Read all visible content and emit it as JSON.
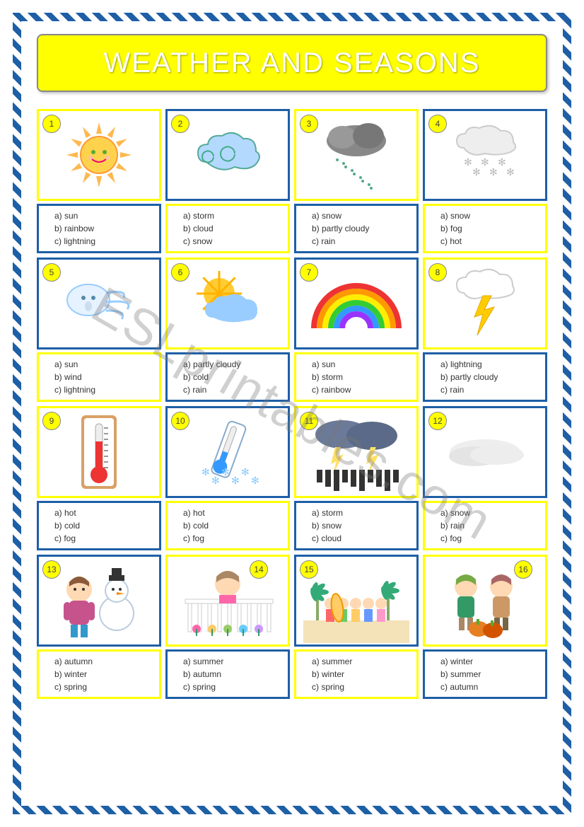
{
  "title": "WEATHER AND SEASONS",
  "watermark": "ESLprintables.com",
  "colors": {
    "title_bg": "#ffff00",
    "title_text": "#ffffff",
    "border_blue": "#1e5fa6",
    "border_yellow": "#ffff00",
    "badge_bg": "#ffff00"
  },
  "option_prefixes": [
    "a)",
    "b)",
    "c)"
  ],
  "cells": [
    {
      "n": 1,
      "img_border": "yellow",
      "opt_border": "blue",
      "icon": "sun",
      "opts": [
        "sun",
        "rainbow",
        "lightning"
      ]
    },
    {
      "n": 2,
      "img_border": "blue",
      "opt_border": "yellow",
      "icon": "cloud",
      "opts": [
        "storm",
        "cloud",
        "snow"
      ]
    },
    {
      "n": 3,
      "img_border": "yellow",
      "opt_border": "blue",
      "icon": "rain",
      "opts": [
        "snow",
        "partly cloudy",
        "rain"
      ]
    },
    {
      "n": 4,
      "img_border": "blue",
      "opt_border": "yellow",
      "icon": "snow",
      "opts": [
        "snow",
        "fog",
        "hot"
      ]
    },
    {
      "n": 5,
      "img_border": "blue",
      "opt_border": "yellow",
      "icon": "wind",
      "opts": [
        "sun",
        "wind",
        "lightning"
      ]
    },
    {
      "n": 6,
      "img_border": "yellow",
      "opt_border": "blue",
      "icon": "partly",
      "opts": [
        "partly cloudy",
        "cold",
        "rain"
      ]
    },
    {
      "n": 7,
      "img_border": "blue",
      "opt_border": "yellow",
      "icon": "rainbow",
      "opts": [
        "sun",
        "storm",
        "rainbow"
      ]
    },
    {
      "n": 8,
      "img_border": "yellow",
      "opt_border": "blue",
      "icon": "lightning",
      "opts": [
        "lightning",
        "partly cloudy",
        "rain"
      ]
    },
    {
      "n": 9,
      "img_border": "yellow",
      "opt_border": "blue",
      "icon": "hot",
      "opts": [
        "hot",
        "cold",
        "fog"
      ]
    },
    {
      "n": 10,
      "img_border": "blue",
      "opt_border": "yellow",
      "icon": "cold",
      "opts": [
        "hot",
        "cold",
        "fog"
      ]
    },
    {
      "n": 11,
      "img_border": "yellow",
      "opt_border": "blue",
      "icon": "storm",
      "opts": [
        "storm",
        "snow",
        "cloud"
      ]
    },
    {
      "n": 12,
      "img_border": "blue",
      "opt_border": "yellow",
      "icon": "fog",
      "opts": [
        "snow",
        "rain",
        "fog"
      ]
    },
    {
      "n": 13,
      "img_border": "blue",
      "opt_border": "yellow",
      "icon": "winter",
      "opts": [
        "autumn",
        "winter",
        "spring"
      ]
    },
    {
      "n": 14,
      "img_border": "yellow",
      "opt_border": "blue",
      "icon": "spring",
      "opts": [
        "summer",
        "autumn",
        "spring"
      ],
      "badge_pos": "r14"
    },
    {
      "n": 15,
      "img_border": "blue",
      "opt_border": "yellow",
      "icon": "summer",
      "opts": [
        "summer",
        "winter",
        "spring"
      ]
    },
    {
      "n": 16,
      "img_border": "yellow",
      "opt_border": "blue",
      "icon": "autumn",
      "opts": [
        "winter",
        "summer",
        "autumn"
      ],
      "badge_pos": "r16"
    }
  ]
}
